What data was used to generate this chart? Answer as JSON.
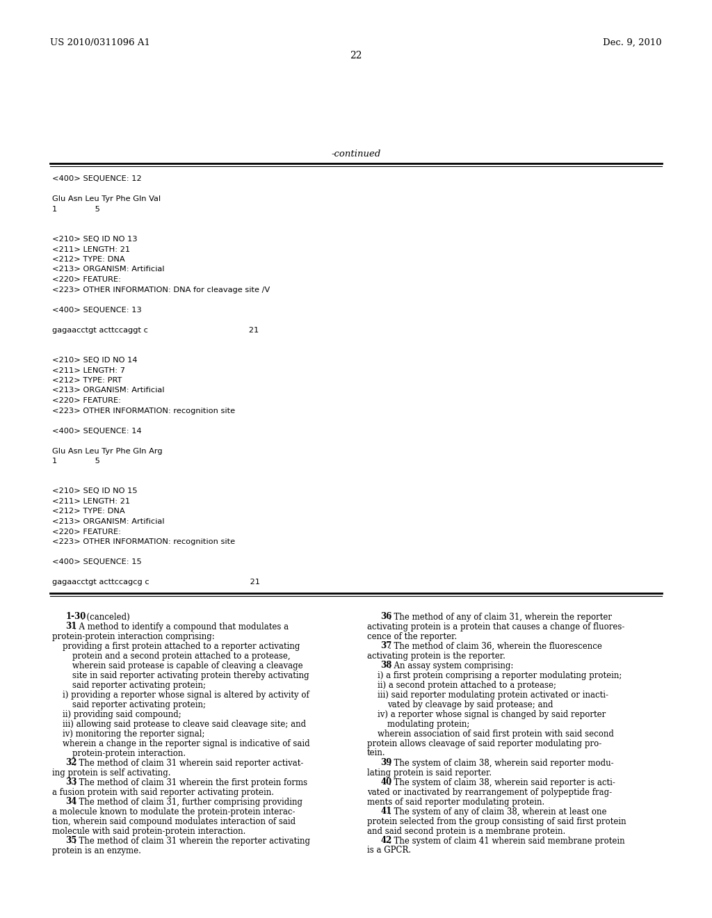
{
  "background_color": "#ffffff",
  "header_left": "US 2010/0311096 A1",
  "header_right": "Dec. 9, 2010",
  "page_number": "22",
  "continued_label": "-continued",
  "mono_lines": [
    "<400> SEQUENCE: 12",
    "",
    "Glu Asn Leu Tyr Phe Gln Val",
    "1               5",
    "",
    "",
    "<210> SEQ ID NO 13",
    "<211> LENGTH: 21",
    "<212> TYPE: DNA",
    "<213> ORGANISM: Artificial",
    "<220> FEATURE:",
    "<223> OTHER INFORMATION: DNA for cleavage site /V",
    "",
    "<400> SEQUENCE: 13",
    "",
    "gagaacctgt acttccaggt c                                        21",
    "",
    "",
    "<210> SEQ ID NO 14",
    "<211> LENGTH: 7",
    "<212> TYPE: PRT",
    "<213> ORGANISM: Artificial",
    "<220> FEATURE:",
    "<223> OTHER INFORMATION: recognition site",
    "",
    "<400> SEQUENCE: 14",
    "",
    "Glu Asn Leu Tyr Phe Gln Arg",
    "1               5",
    "",
    "",
    "<210> SEQ ID NO 15",
    "<211> LENGTH: 21",
    "<212> TYPE: DNA",
    "<213> ORGANISM: Artificial",
    "<220> FEATURE:",
    "<223> OTHER INFORMATION: recognition site",
    "",
    "<400> SEQUENCE: 15",
    "",
    "gagaacctgt acttccagcg c                                        21"
  ],
  "col1_claims": [
    {
      "bold": "1-30",
      "rest": ". (canceled)",
      "lead": "    "
    },
    {
      "bold": "31",
      "rest": ". A method to identify a compound that modulates a",
      "lead": "    "
    },
    {
      "bold": "",
      "rest": "protein-protein interaction comprising:",
      "lead": ""
    },
    {
      "bold": "",
      "rest": "providing a first protein attached to a reporter activating",
      "lead": "   "
    },
    {
      "bold": "",
      "rest": "protein and a second protein attached to a protease,",
      "lead": "      "
    },
    {
      "bold": "",
      "rest": "wherein said protease is capable of cleaving a cleavage",
      "lead": "      "
    },
    {
      "bold": "",
      "rest": "site in said reporter activating protein thereby activating",
      "lead": "      "
    },
    {
      "bold": "",
      "rest": "said reporter activating protein;",
      "lead": "      "
    },
    {
      "bold": "",
      "rest": "i) providing a reporter whose signal is altered by activity of",
      "lead": "   "
    },
    {
      "bold": "",
      "rest": "said reporter activating protein;",
      "lead": "      "
    },
    {
      "bold": "",
      "rest": "ii) providing said compound;",
      "lead": "   "
    },
    {
      "bold": "",
      "rest": "iii) allowing said protease to cleave said cleavage site; and",
      "lead": "   "
    },
    {
      "bold": "",
      "rest": "iv) monitoring the reporter signal;",
      "lead": "   "
    },
    {
      "bold": "",
      "rest": "wherein a change in the reporter signal is indicative of said",
      "lead": "   "
    },
    {
      "bold": "",
      "rest": "protein-protein interaction.",
      "lead": "      "
    },
    {
      "bold": "32",
      "rest": ". The method of claim 31 wherein said reporter activat-",
      "lead": "    "
    },
    {
      "bold": "",
      "rest": "ing protein is self activating.",
      "lead": ""
    },
    {
      "bold": "33",
      "rest": ". The method of claim 31 wherein the first protein forms",
      "lead": "    "
    },
    {
      "bold": "",
      "rest": "a fusion protein with said reporter activating protein.",
      "lead": ""
    },
    {
      "bold": "34",
      "rest": ". The method of claim 31, further comprising providing",
      "lead": "    "
    },
    {
      "bold": "",
      "rest": "a molecule known to modulate the protein-protein interac-",
      "lead": ""
    },
    {
      "bold": "",
      "rest": "tion, wherein said compound modulates interaction of said",
      "lead": ""
    },
    {
      "bold": "",
      "rest": "molecule with said protein-protein interaction.",
      "lead": ""
    },
    {
      "bold": "35",
      "rest": ". The method of claim 31 wherein the reporter activating",
      "lead": "    "
    },
    {
      "bold": "",
      "rest": "protein is an enzyme.",
      "lead": ""
    }
  ],
  "col2_claims": [
    {
      "bold": "36",
      "rest": ". The method of any of claim 31, wherein the reporter",
      "lead": "    "
    },
    {
      "bold": "",
      "rest": "activating protein is a protein that causes a change of fluores-",
      "lead": ""
    },
    {
      "bold": "",
      "rest": "cence of the reporter.",
      "lead": ""
    },
    {
      "bold": "37",
      "rest": ". The method of claim 36, wherein the fluorescence",
      "lead": "    "
    },
    {
      "bold": "",
      "rest": "activating protein is the reporter.",
      "lead": ""
    },
    {
      "bold": "38",
      "rest": ". An assay system comprising:",
      "lead": "    "
    },
    {
      "bold": "",
      "rest": "i) a first protein comprising a reporter modulating protein;",
      "lead": "   "
    },
    {
      "bold": "",
      "rest": "ii) a second protein attached to a protease;",
      "lead": "   "
    },
    {
      "bold": "",
      "rest": "iii) said reporter modulating protein activated or inacti-",
      "lead": "   "
    },
    {
      "bold": "",
      "rest": "vated by cleavage by said protease; and",
      "lead": "      "
    },
    {
      "bold": "",
      "rest": "iv) a reporter whose signal is changed by said reporter",
      "lead": "   "
    },
    {
      "bold": "",
      "rest": "modulating protein;",
      "lead": "      "
    },
    {
      "bold": "",
      "rest": "wherein association of said first protein with said second",
      "lead": "   "
    },
    {
      "bold": "",
      "rest": "protein allows cleavage of said reporter modulating pro-",
      "lead": ""
    },
    {
      "bold": "",
      "rest": "tein.",
      "lead": ""
    },
    {
      "bold": "39",
      "rest": ". The system of claim 38, wherein said reporter modu-",
      "lead": "    "
    },
    {
      "bold": "",
      "rest": "lating protein is said reporter.",
      "lead": ""
    },
    {
      "bold": "40",
      "rest": ". The system of claim 38, wherein said reporter is acti-",
      "lead": "    "
    },
    {
      "bold": "",
      "rest": "vated or inactivated by rearrangement of polypeptide frag-",
      "lead": ""
    },
    {
      "bold": "",
      "rest": "ments of said reporter modulating protein.",
      "lead": ""
    },
    {
      "bold": "41",
      "rest": ". The system of any of claim 38, wherein at least one",
      "lead": "    "
    },
    {
      "bold": "",
      "rest": "protein selected from the group consisting of said first protein",
      "lead": ""
    },
    {
      "bold": "",
      "rest": "and said second protein is a membrane protein.",
      "lead": ""
    },
    {
      "bold": "42",
      "rest": ". The system of claim 41 wherein said membrane protein",
      "lead": "    "
    },
    {
      "bold": "",
      "rest": "is a GPCR.",
      "lead": ""
    }
  ]
}
